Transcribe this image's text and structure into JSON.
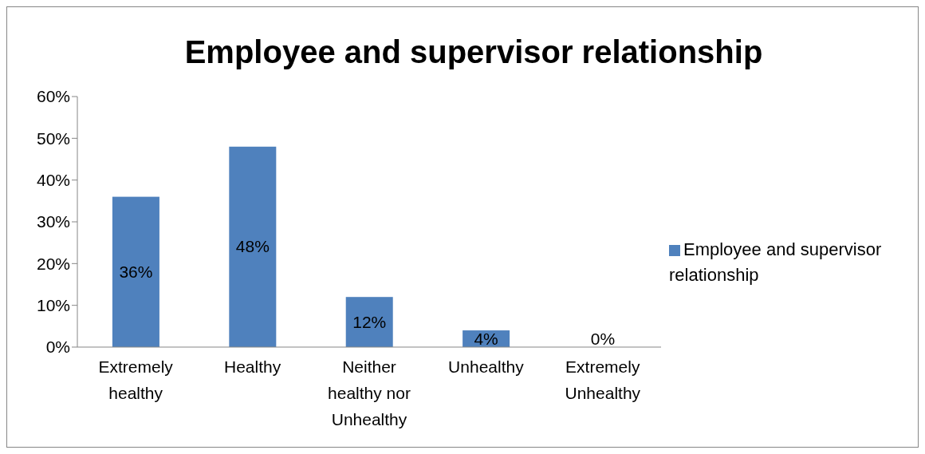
{
  "chart_data": {
    "type": "bar",
    "title": "Employee and supervisor relationship",
    "categories": [
      "Extremely healthy",
      "Healthy",
      "Neither healthy nor Unhealthy",
      "Unhealthy",
      "Extremely Unhealthy"
    ],
    "series": [
      {
        "name": "Employee and supervisor relationship",
        "color": "#4f81bd",
        "values": [
          36,
          48,
          12,
          4,
          0
        ],
        "value_labels": [
          "36%",
          "48%",
          "12%",
          "4%",
          "0%"
        ]
      }
    ],
    "ylim": [
      0,
      60
    ],
    "yticks": [
      {
        "value": 0,
        "label": "0%"
      },
      {
        "value": 10,
        "label": "10%"
      },
      {
        "value": 20,
        "label": "20%"
      },
      {
        "value": 30,
        "label": "30%"
      },
      {
        "value": 40,
        "label": "40%"
      },
      {
        "value": 50,
        "label": "50%"
      },
      {
        "value": 60,
        "label": "60%"
      }
    ],
    "grid": false,
    "legend": "right"
  }
}
